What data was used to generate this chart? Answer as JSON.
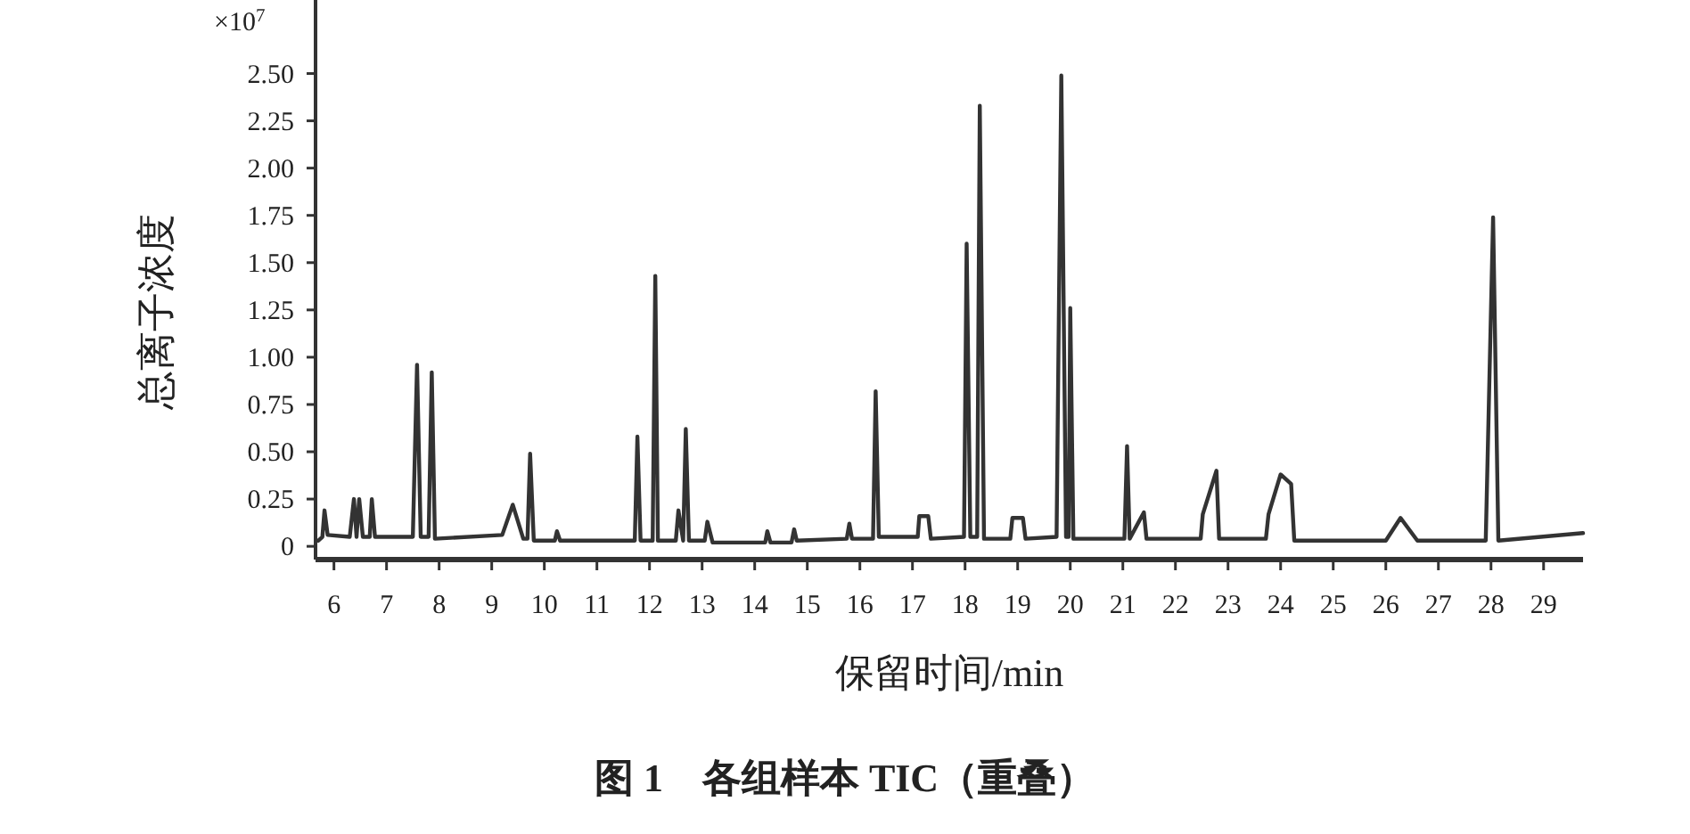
{
  "chart_data": {
    "type": "line",
    "title": "图 1　各组样本 TIC（重叠）",
    "xlabel": "保留时间/min",
    "ylabel": "总离子浓度",
    "annotations": [
      "×10$^{7}$"
    ],
    "xlim": [
      5.65,
      29.75
    ],
    "ylim": [
      -0.07,
      2.87
    ],
    "xticks": [
      6,
      7,
      8,
      9,
      10,
      11,
      12,
      13,
      14,
      15,
      16,
      17,
      18,
      19,
      20,
      21,
      22,
      23,
      24,
      25,
      26,
      27,
      28,
      29
    ],
    "yticks": [
      0,
      0.25,
      {
        "value": 0.5,
        "label": "0.50"
      },
      0.75,
      {
        "value": 1,
        "label": "1.00"
      },
      1.25,
      {
        "value": 1.5,
        "label": "1.50"
      },
      1.75,
      {
        "value": 2,
        "label": "2.00"
      },
      2.25,
      {
        "value": 2.5,
        "label": "2.50"
      }
    ],
    "grid": false,
    "marker": "none",
    "line_style": "solid",
    "series": [
      {
        "color": "#333333",
        "x": [
          5.7,
          5.78,
          5.82,
          5.88,
          6.3,
          6.38,
          6.43,
          6.48,
          6.55,
          6.68,
          6.72,
          6.78,
          7.5,
          7.58,
          7.65,
          7.8,
          7.86,
          7.92,
          9.2,
          9.4,
          9.6,
          9.68,
          9.73,
          9.8,
          10.2,
          10.24,
          10.3,
          11.72,
          11.77,
          11.83,
          12.06,
          12.11,
          12.16,
          12.5,
          12.55,
          12.64,
          12.69,
          12.75,
          13.05,
          13.1,
          13.2,
          14.2,
          14.24,
          14.3,
          14.7,
          14.75,
          14.8,
          15.75,
          15.8,
          15.85,
          16.25,
          16.3,
          16.36,
          17.1,
          17.13,
          17.3,
          17.35,
          17.98,
          18.03,
          18.1,
          18.23,
          18.28,
          18.36,
          18.86,
          18.9,
          19.1,
          19.15,
          19.74,
          19.83,
          19.92,
          19.97,
          20.0,
          20.06,
          21.03,
          21.08,
          21.13,
          21.4,
          21.45,
          22.48,
          22.52,
          22.78,
          22.83,
          23.72,
          23.77,
          24.0,
          24.2,
          24.26,
          26.0,
          26.28,
          26.6,
          27.9,
          28.04,
          28.14,
          29.75
        ],
        "values": [
          0.03,
          0.05,
          0.19,
          0.06,
          0.05,
          0.25,
          0.05,
          0.25,
          0.05,
          0.05,
          0.25,
          0.05,
          0.05,
          0.96,
          0.05,
          0.05,
          0.92,
          0.04,
          0.06,
          0.22,
          0.04,
          0.04,
          0.49,
          0.03,
          0.03,
          0.08,
          0.03,
          0.03,
          0.58,
          0.03,
          0.03,
          1.43,
          0.03,
          0.03,
          0.19,
          0.03,
          0.62,
          0.03,
          0.03,
          0.13,
          0.02,
          0.02,
          0.08,
          0.02,
          0.02,
          0.09,
          0.03,
          0.04,
          0.12,
          0.04,
          0.04,
          0.82,
          0.05,
          0.05,
          0.16,
          0.16,
          0.04,
          0.05,
          1.6,
          0.05,
          0.05,
          2.33,
          0.04,
          0.04,
          0.15,
          0.15,
          0.04,
          0.05,
          2.49,
          0.05,
          0.05,
          1.26,
          0.04,
          0.04,
          0.53,
          0.04,
          0.18,
          0.04,
          0.04,
          0.17,
          0.4,
          0.04,
          0.04,
          0.17,
          0.38,
          0.33,
          0.03,
          0.03,
          0.15,
          0.03,
          0.03,
          1.74,
          0.03,
          0.07
        ]
      }
    ]
  }
}
